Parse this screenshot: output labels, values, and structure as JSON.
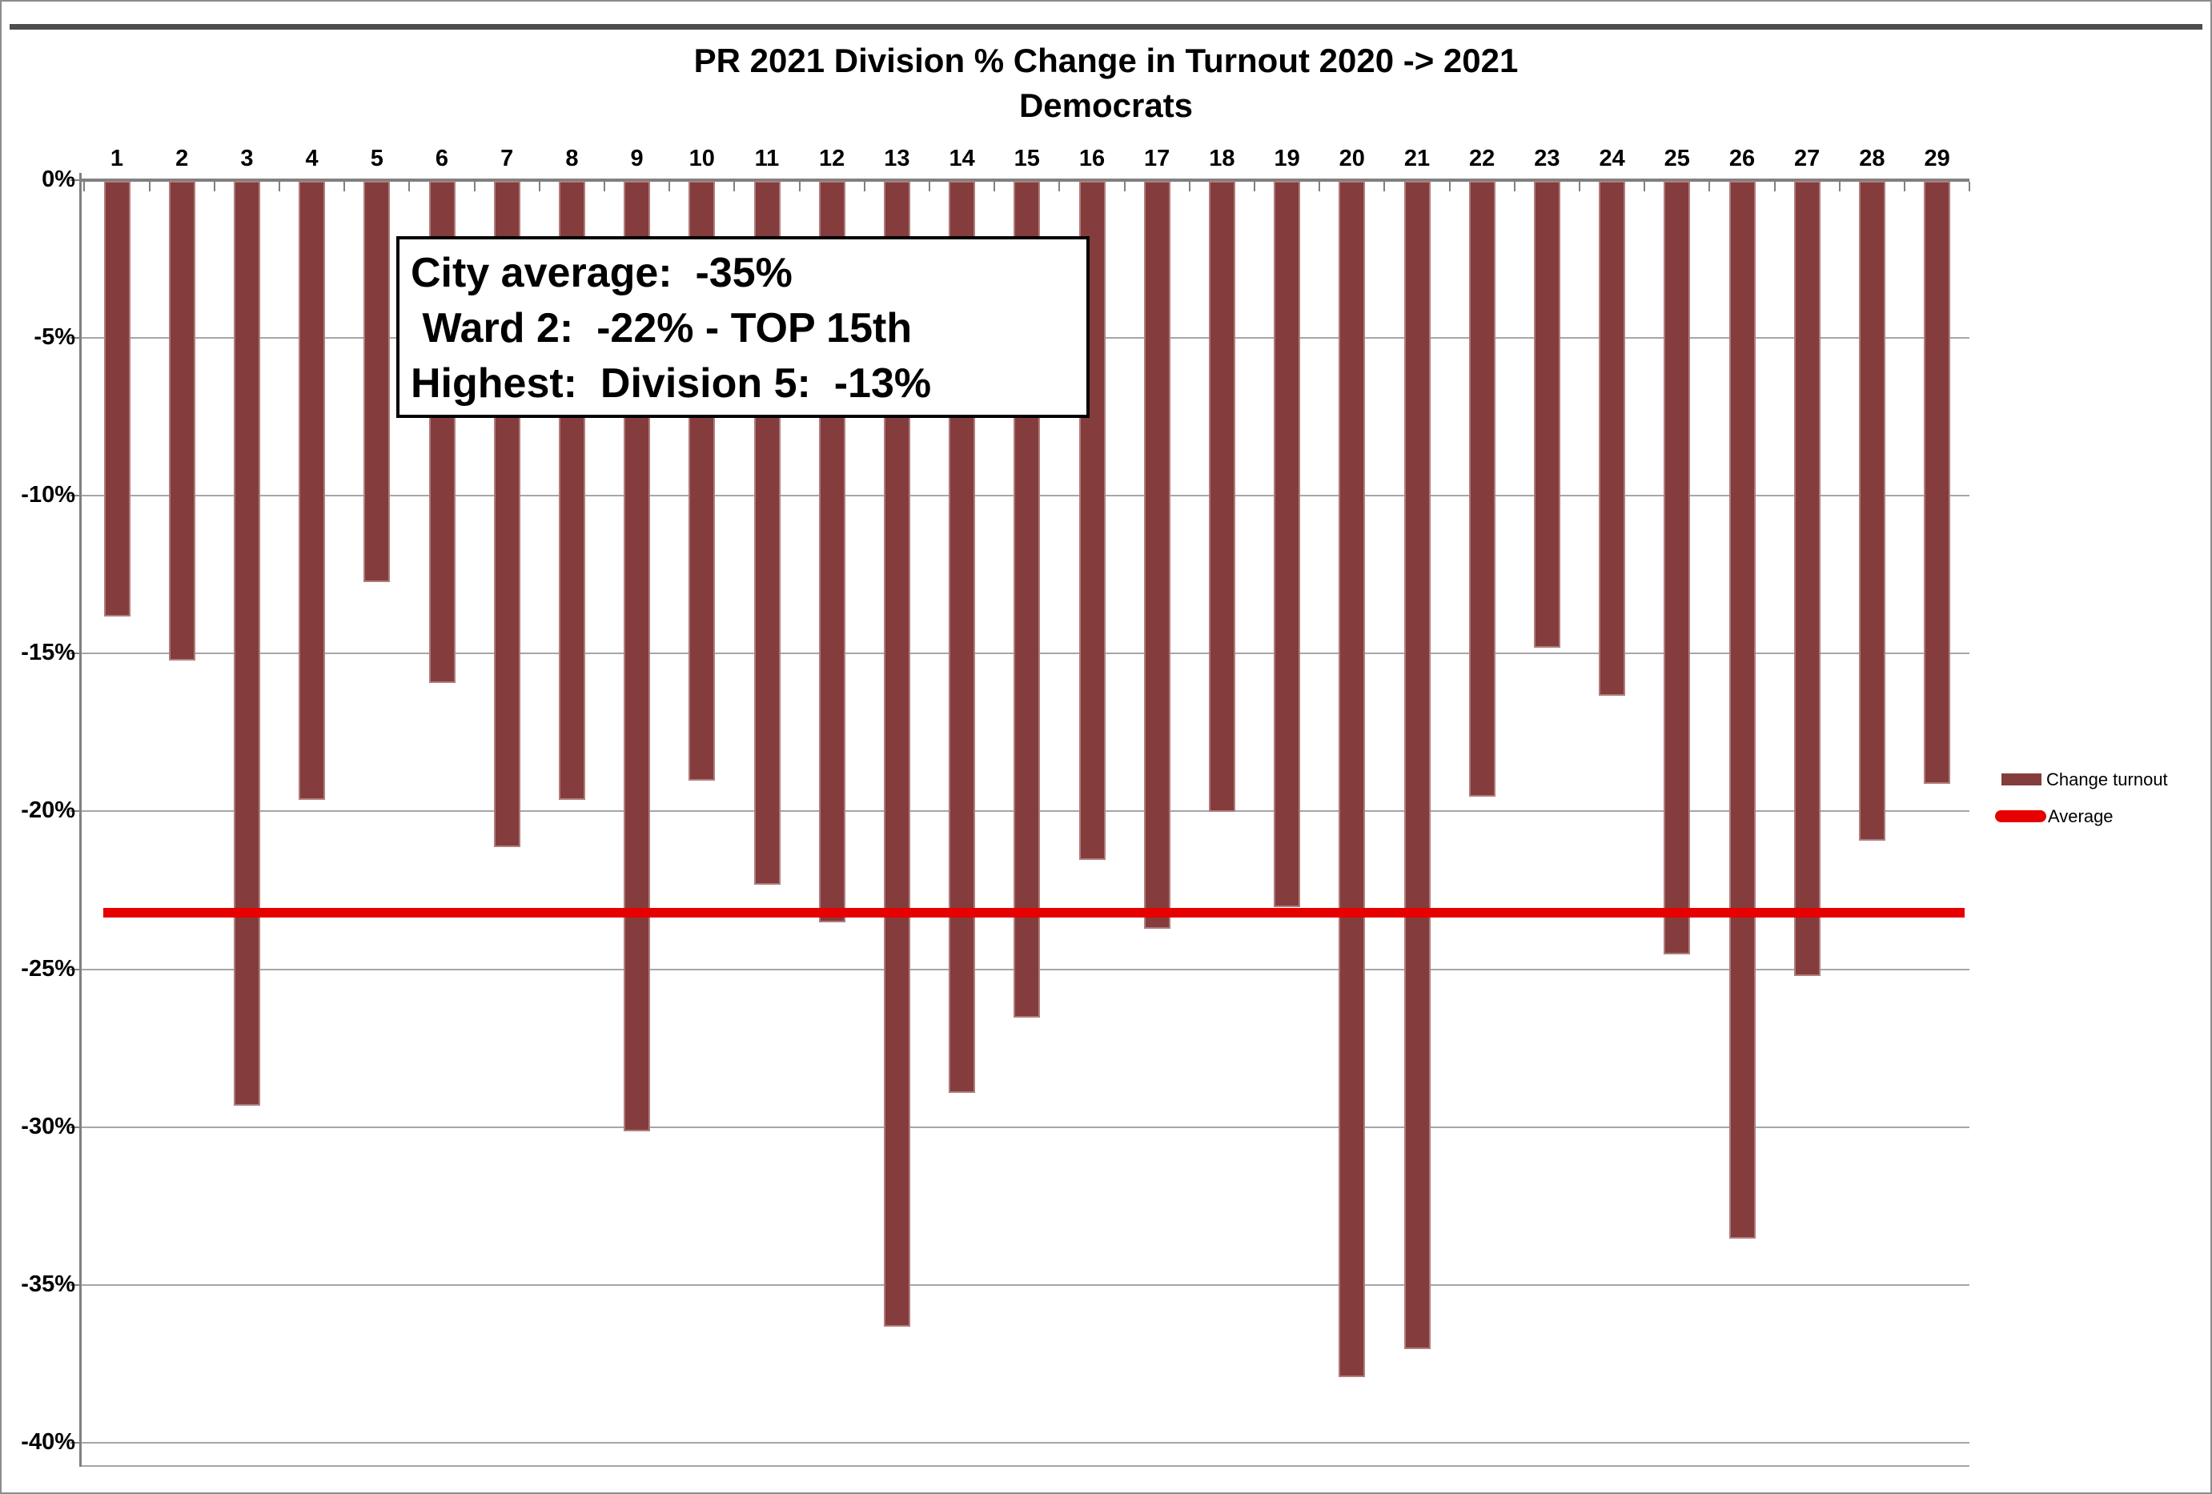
{
  "header": {
    "title": "PR 2021 Division % Change in Turnout 2020 -> 2021",
    "subtitle": "Democrats"
  },
  "chart_data": {
    "type": "bar",
    "title": "PR 2021 Division % Change in Turnout 2020 -> 2021",
    "subtitle": "Democrats",
    "categories": [
      "1",
      "2",
      "3",
      "4",
      "5",
      "6",
      "7",
      "8",
      "9",
      "10",
      "11",
      "12",
      "13",
      "14",
      "15",
      "16",
      "17",
      "18",
      "19",
      "20",
      "21",
      "22",
      "23",
      "24",
      "25",
      "26",
      "27",
      "28",
      "29"
    ],
    "series": [
      {
        "name": "Change turnout",
        "values": [
          -13.8,
          -15.2,
          -29.3,
          -19.6,
          -12.7,
          -15.9,
          -21.1,
          -19.6,
          -30.1,
          -19.0,
          -22.3,
          -23.5,
          -36.3,
          -28.9,
          -26.5,
          -21.5,
          -23.7,
          -20.0,
          -23.0,
          -37.9,
          -37.0,
          -19.5,
          -14.8,
          -16.3,
          -24.5,
          -33.5,
          -25.2,
          -20.9,
          -19.1
        ]
      }
    ],
    "average_line": {
      "name": "Average",
      "value": -23.2
    },
    "ylim": [
      -40,
      0
    ],
    "yticks": [
      0,
      -5,
      -10,
      -15,
      -20,
      -25,
      -30,
      -35,
      -40
    ],
    "ytick_labels": [
      "0%",
      "-5%",
      "-10%",
      "-15%",
      "-20%",
      "-25%",
      "-30%",
      "-35%",
      "-40%"
    ],
    "grid": true,
    "legend_position": "right",
    "colors": {
      "bar": "#843c3c",
      "average": "#e60000",
      "gridline": "#a6a6a6",
      "axis": "#808080"
    }
  },
  "annotation_box": {
    "line1": "City average:  -35%",
    "line2": " Ward 2:  -22% - TOP 15th",
    "line3": "Highest:  Division 5:  -13%"
  },
  "legend": {
    "items": [
      {
        "label": "Change turnout",
        "swatch": "bar-swatch"
      },
      {
        "label": "Average",
        "swatch": "line-swatch"
      }
    ]
  }
}
